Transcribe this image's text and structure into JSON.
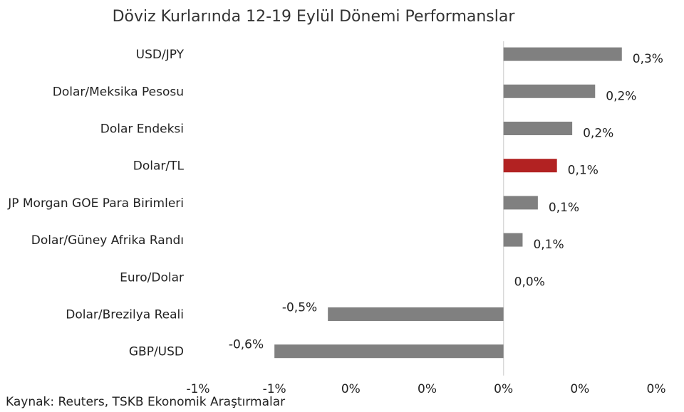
{
  "chart_data": {
    "type": "bar",
    "orientation": "horizontal",
    "title": "Döviz Kurlarında 12-19 Eylül Dönemi Performanslar",
    "categories": [
      "USD/JPY",
      "Dolar/Meksika Pesosu",
      "Dolar Endeksi",
      "Dolar/TL",
      "JP Morgan GOE Para Birimleri",
      "Dolar/Güney Afrika Randı",
      "Euro/Dolar",
      "Dolar/Brezilya Reali",
      "GBP/USD"
    ],
    "values": [
      0.31,
      0.24,
      0.18,
      0.14,
      0.09,
      0.05,
      0.0,
      -0.46,
      -0.6
    ],
    "data_labels": [
      "0,3%",
      "0,2%",
      "0,2%",
      "0,1%",
      "0,1%",
      "0,1%",
      "0,0%",
      "-0,5%",
      "-0,6%"
    ],
    "highlight_category": "Dolar/TL",
    "colors": {
      "bar": "#808080",
      "highlight": "#b22222",
      "axis": "#d9d9d9"
    },
    "xlim": [
      -0.8,
      0.4
    ],
    "x_tick_values": [
      -0.8,
      -0.6,
      -0.4,
      -0.2,
      0.0,
      0.2,
      0.4
    ],
    "x_tick_labels": [
      "-1%",
      "-1%",
      "0%",
      "0%",
      "0%",
      "0%",
      "0%"
    ],
    "grid": false,
    "legend": "none"
  },
  "source_note": "Kaynak: Reuters, TSKB Ekonomik Araştırmalar"
}
